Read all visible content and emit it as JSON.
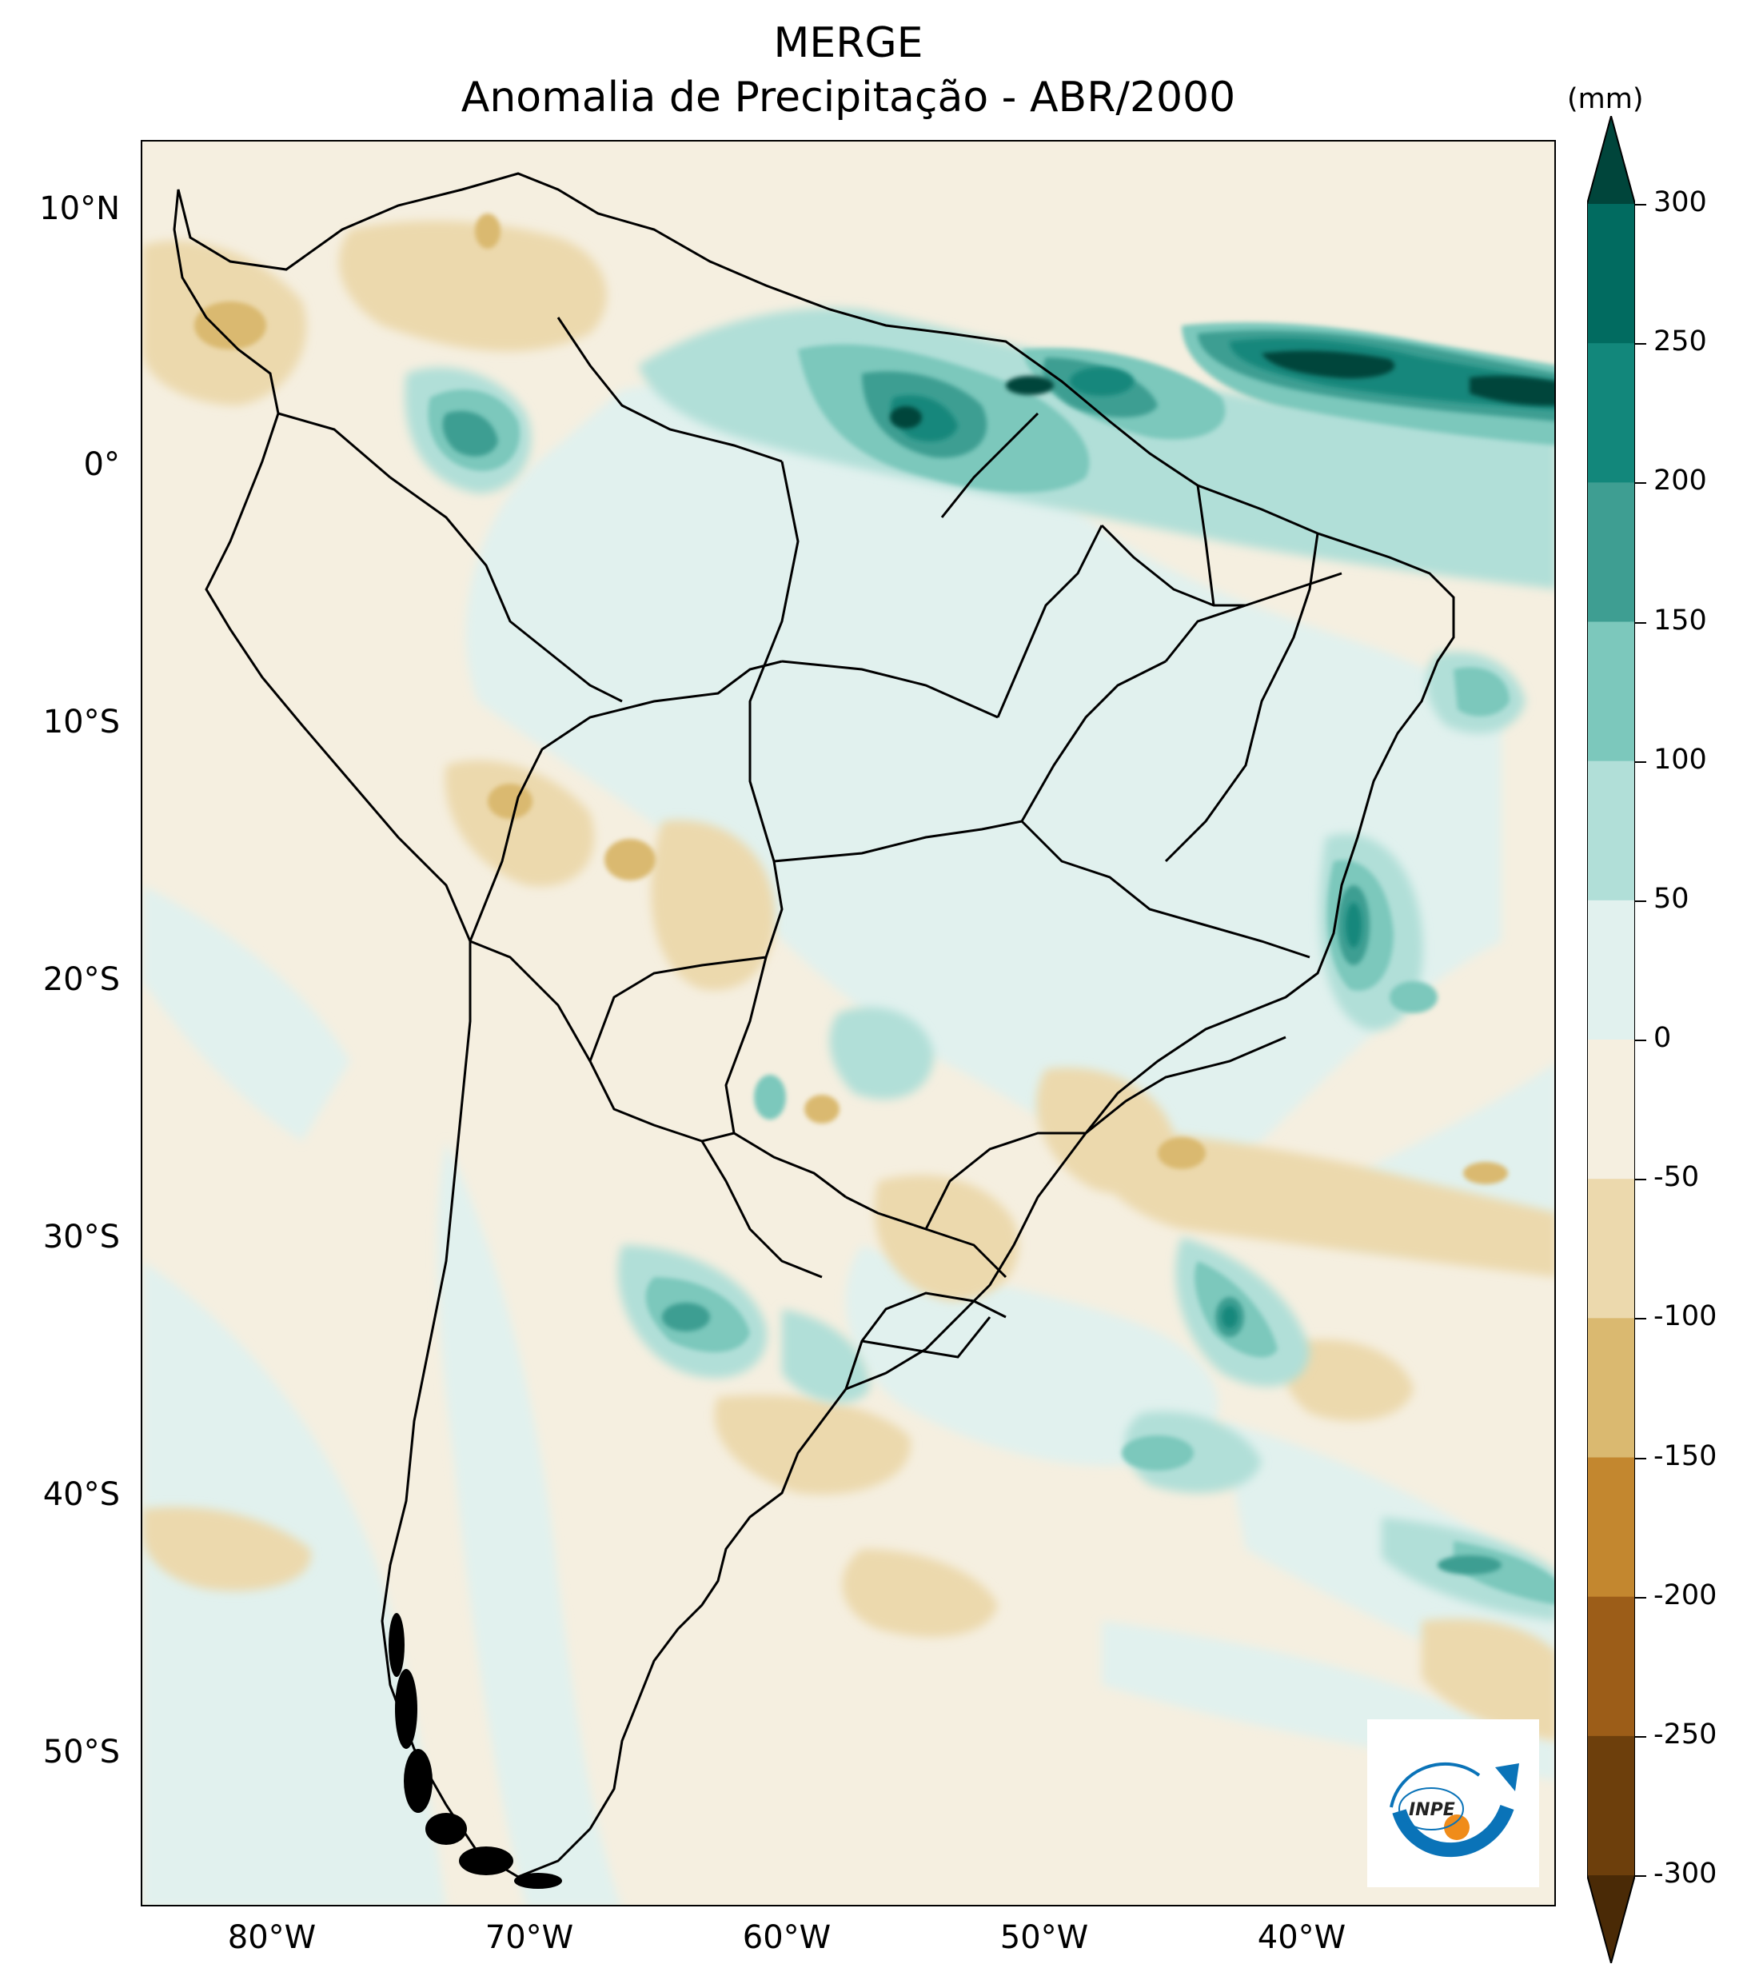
{
  "title": "MERGE",
  "subtitle": "Anomalia de Precipitação - ABR/2000",
  "colorbar": {
    "unit": "(mm)",
    "ticks": [
      "300",
      "250",
      "200",
      "150",
      "100",
      "50",
      "0",
      "-50",
      "-100",
      "-150",
      "-200",
      "-250",
      "-300"
    ],
    "colors": [
      "#00453b",
      "#016b60",
      "#12877b",
      "#3e9e92",
      "#7cc8bc",
      "#b1dfd8",
      "#e1f1ee",
      "#f5efe0",
      "#ecd9ad",
      "#dab970",
      "#c3872f",
      "#9c5d18",
      "#6d3f0c",
      "#4a2a06"
    ]
  },
  "axes": {
    "lat_ticks": [
      "10°N",
      "0°",
      "10°S",
      "20°S",
      "30°S",
      "40°S",
      "50°S"
    ],
    "lon_ticks": [
      "80°W",
      "70°W",
      "60°W",
      "50°W",
      "40°W"
    ]
  },
  "logo": {
    "text": "INPE"
  }
}
